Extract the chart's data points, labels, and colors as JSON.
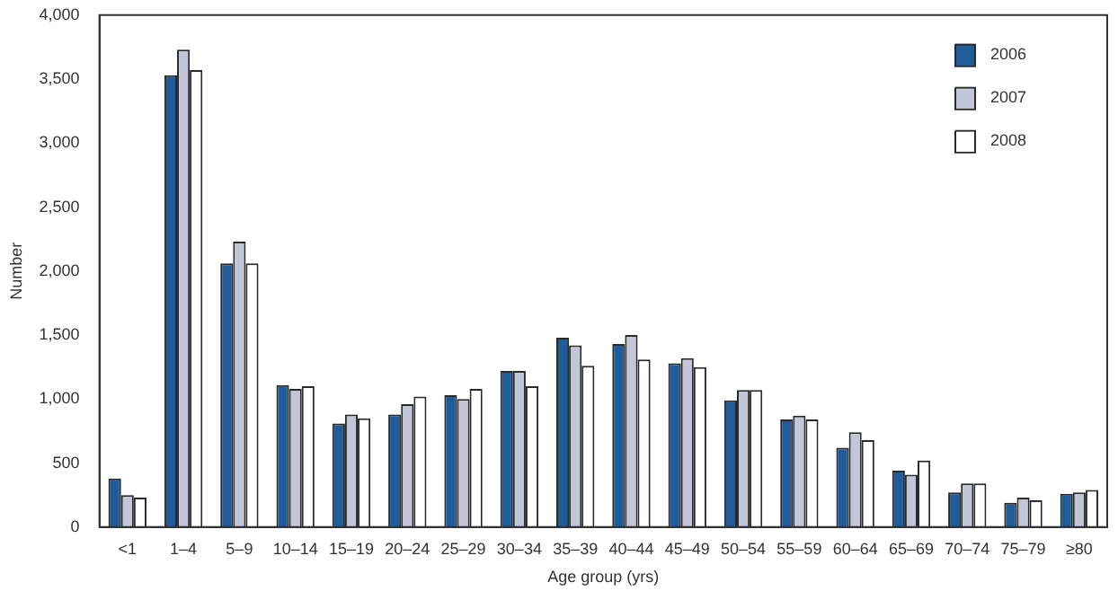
{
  "chart_data": {
    "type": "bar",
    "xlabel": "Age group (yrs)",
    "ylabel": "Number",
    "categories": [
      "<1",
      "1–4",
      "5–9",
      "10–14",
      "15–19",
      "20–24",
      "25–29",
      "30–34",
      "35–39",
      "40–44",
      "45–49",
      "50–54",
      "55–59",
      "60–64",
      "65–69",
      "70–74",
      "75–79",
      "≥80"
    ],
    "series": [
      {
        "name": "2006",
        "color": "#1f5c9c",
        "values": [
          380,
          3530,
          2060,
          1110,
          810,
          880,
          1030,
          1220,
          1480,
          1430,
          1280,
          990,
          840,
          620,
          440,
          270,
          190,
          260
        ]
      },
      {
        "name": "2007",
        "color": "#c3c6d8",
        "values": [
          250,
          3730,
          2230,
          1080,
          880,
          960,
          1000,
          1220,
          1420,
          1500,
          1320,
          1070,
          870,
          740,
          410,
          340,
          230,
          270
        ]
      },
      {
        "name": "2008",
        "color": "#ffffff",
        "values": [
          230,
          3570,
          2060,
          1100,
          850,
          1020,
          1080,
          1100,
          1260,
          1310,
          1250,
          1070,
          840,
          680,
          520,
          340,
          210,
          290
        ]
      }
    ],
    "ylim": [
      0,
      4000
    ],
    "yticks": [
      0,
      500,
      {
        "value": 1000,
        "label": "1,000"
      },
      {
        "value": 1500,
        "label": "1,500"
      },
      {
        "value": 2000,
        "label": "2,000"
      },
      {
        "value": 2500,
        "label": "2,500"
      },
      {
        "value": 3000,
        "label": "3,000"
      },
      {
        "value": 3500,
        "label": "3,500"
      },
      {
        "value": 4000,
        "label": "4,000"
      }
    ],
    "grid": false,
    "legend": "top right"
  }
}
